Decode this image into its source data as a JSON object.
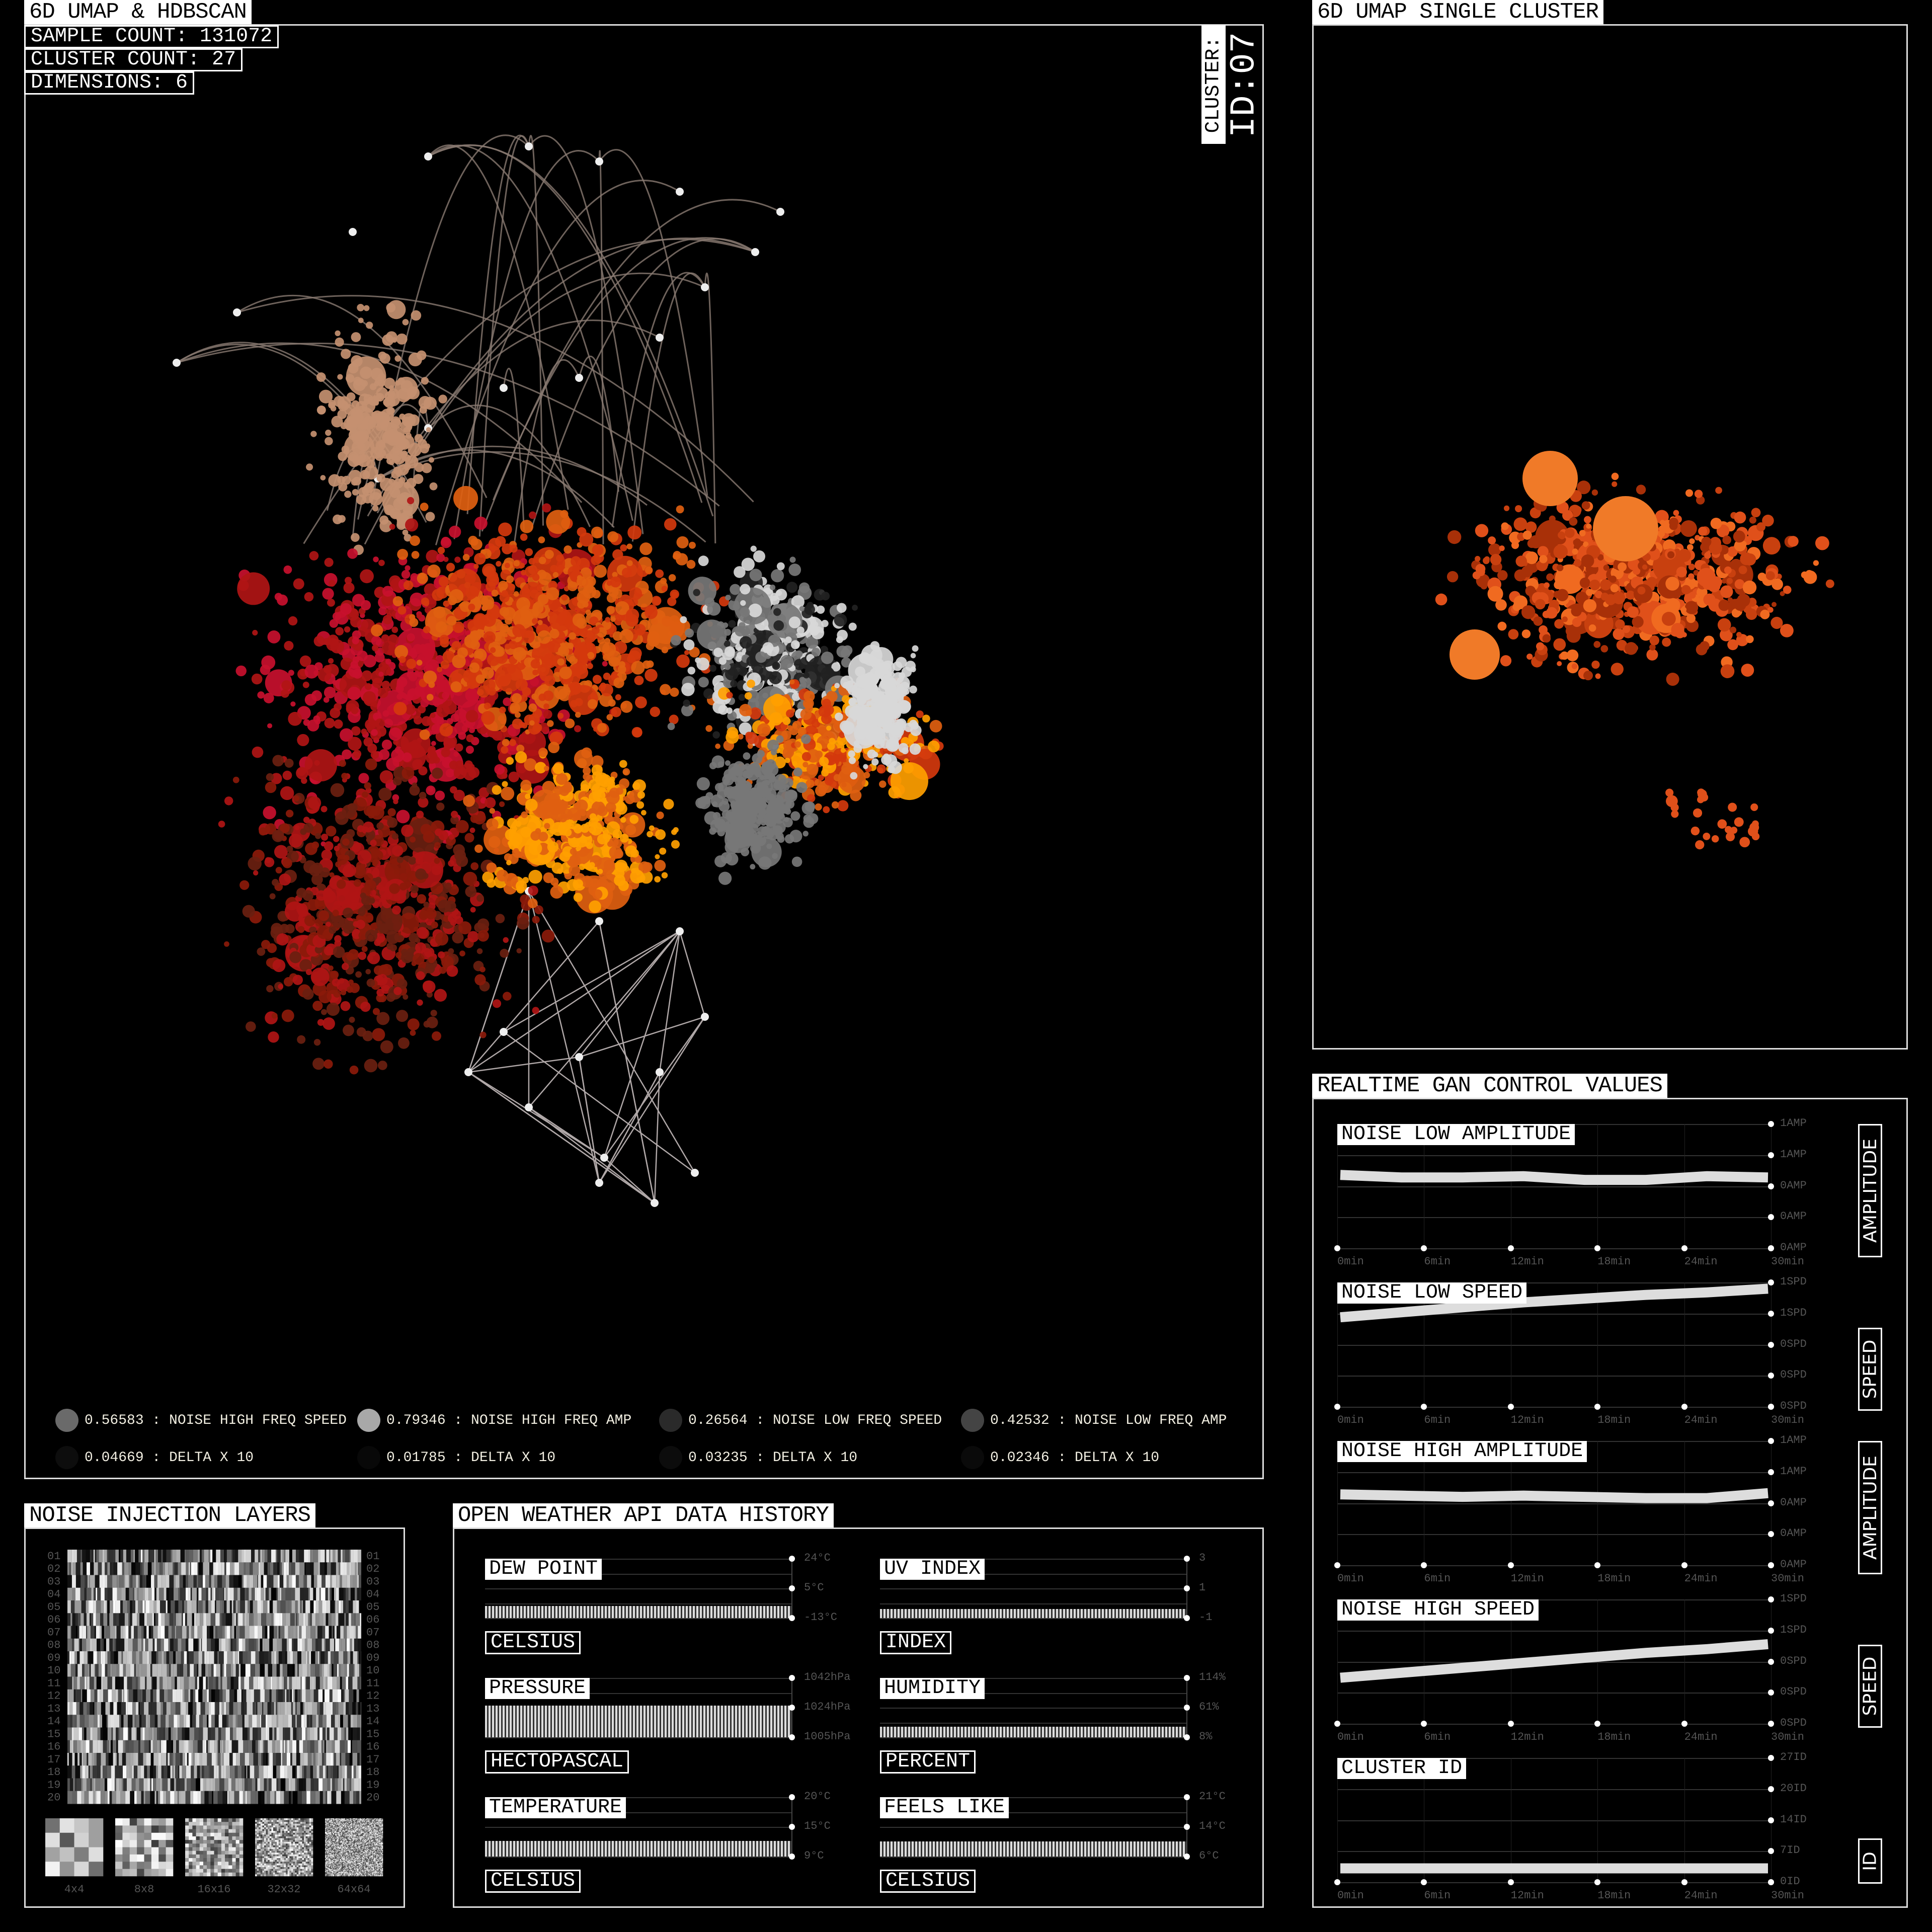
{
  "main": {
    "title": "6D UMAP & HDBSCAN",
    "stats": {
      "sample_count": "SAMPLE COUNT: 131072",
      "cluster_count": "CLUSTER COUNT: 27",
      "dimensions": "DIMENSIONS: 6"
    },
    "cluster_label": "CLUSTER:",
    "cluster_id": "ID:07",
    "legend": [
      {
        "value": "0.56583 : NOISE HIGH FREQ SPEED",
        "color": "#6a6a6a"
      },
      {
        "value": "0.79346 : NOISE HIGH FREQ AMP",
        "color": "#a8a8a8"
      },
      {
        "value": "0.26564 : NOISE LOW FREQ SPEED",
        "color": "#2a2a2a"
      },
      {
        "value": "0.42532 : NOISE LOW FREQ AMP",
        "color": "#444444"
      },
      {
        "value": "0.04669 : DELTA X 10",
        "color": "#0d0d0d"
      },
      {
        "value": "0.01785 : DELTA X 10",
        "color": "#080808"
      },
      {
        "value": "0.03235 : DELTA X 10",
        "color": "#0c0c0c"
      },
      {
        "value": "0.02346 : DELTA X 10",
        "color": "#0a0a0a"
      }
    ],
    "palette": [
      "#c8102e",
      "#d4380d",
      "#8b1a0a",
      "#ff9f00",
      "#e06010",
      "#b01515",
      "#6a2010",
      "#d8d8d8",
      "#777777",
      "#222222",
      "#c49070"
    ]
  },
  "single_cluster": {
    "title": "6D UMAP SINGLE CLUSTER",
    "color": "#e0501a"
  },
  "noise": {
    "title": "NOISE INJECTION LAYERS",
    "rows": [
      "01",
      "02",
      "03",
      "04",
      "05",
      "06",
      "07",
      "08",
      "09",
      "10",
      "11",
      "12",
      "13",
      "14",
      "15",
      "16",
      "17",
      "18",
      "19",
      "20"
    ],
    "thumbnails": [
      "4x4",
      "8x8",
      "16x16",
      "32x32",
      "64x64"
    ]
  },
  "weather": {
    "title": "OPEN WEATHER API DATA HISTORY",
    "charts": [
      {
        "label": "DEW POINT",
        "unit": "CELSIUS",
        "ticks": [
          "24°C",
          "5°C",
          "-13°C"
        ],
        "level": 0.2
      },
      {
        "label": "UV INDEX",
        "unit": "INDEX",
        "ticks": [
          "3",
          "1",
          "-1"
        ],
        "level": 0.15
      },
      {
        "label": "PRESSURE",
        "unit": "HECTOPASCAL",
        "ticks": [
          "1042hPa",
          "1024hPa",
          "1005hPa"
        ],
        "level": 0.53
      },
      {
        "label": "HUMIDITY",
        "unit": "PERCENT",
        "ticks": [
          "114%",
          "61%",
          "8%"
        ],
        "level": 0.18
      },
      {
        "label": "TEMPERATURE",
        "unit": "CELSIUS",
        "ticks": [
          "20°C",
          "15°C",
          "9°C"
        ],
        "level": 0.26
      },
      {
        "label": "FEELS LIKE",
        "unit": "CELSIUS",
        "ticks": [
          "21°C",
          "14°C",
          "6°C"
        ],
        "level": 0.25
      }
    ]
  },
  "gan": {
    "title": "REALTIME GAN CONTROL VALUES",
    "x_ticks": [
      "0min",
      "6min",
      "12min",
      "18min",
      "24min",
      "30min"
    ],
    "charts": [
      {
        "label": "NOISE LOW AMPLITUDE",
        "side": "AMPLITUDE",
        "y_ticks": [
          "1AMP",
          "1AMP",
          "0AMP",
          "0AMP",
          "0AMP"
        ],
        "ylim": [
          0,
          1
        ],
        "values": [
          0.59,
          0.57,
          0.57,
          0.58,
          0.55,
          0.55,
          0.58,
          0.57
        ]
      },
      {
        "label": "NOISE LOW SPEED",
        "side": "SPEED",
        "y_ticks": [
          "1SPD",
          "1SPD",
          "0SPD",
          "0SPD",
          "0SPD"
        ],
        "ylim": [
          0,
          1
        ],
        "values": [
          0.72,
          0.76,
          0.8,
          0.84,
          0.87,
          0.9,
          0.92,
          0.95
        ]
      },
      {
        "label": "NOISE HIGH AMPLITUDE",
        "side": "AMPLITUDE",
        "y_ticks": [
          "1AMP",
          "1AMP",
          "0AMP",
          "0AMP",
          "0AMP"
        ],
        "ylim": [
          0,
          1
        ],
        "values": [
          0.57,
          0.56,
          0.55,
          0.56,
          0.55,
          0.54,
          0.54,
          0.58
        ]
      },
      {
        "label": "NOISE HIGH SPEED",
        "side": "SPEED",
        "y_ticks": [
          "1SPD",
          "1SPD",
          "0SPD",
          "0SPD",
          "0SPD"
        ],
        "ylim": [
          0,
          1
        ],
        "values": [
          0.37,
          0.41,
          0.45,
          0.49,
          0.53,
          0.57,
          0.6,
          0.64
        ]
      },
      {
        "label": "CLUSTER ID",
        "side": "ID",
        "y_ticks": [
          "27ID",
          "20ID",
          "14ID",
          "7ID",
          "0ID"
        ],
        "ylim": [
          0,
          27
        ],
        "values": [
          3,
          3,
          3,
          3,
          3,
          3,
          3,
          3
        ]
      }
    ]
  }
}
